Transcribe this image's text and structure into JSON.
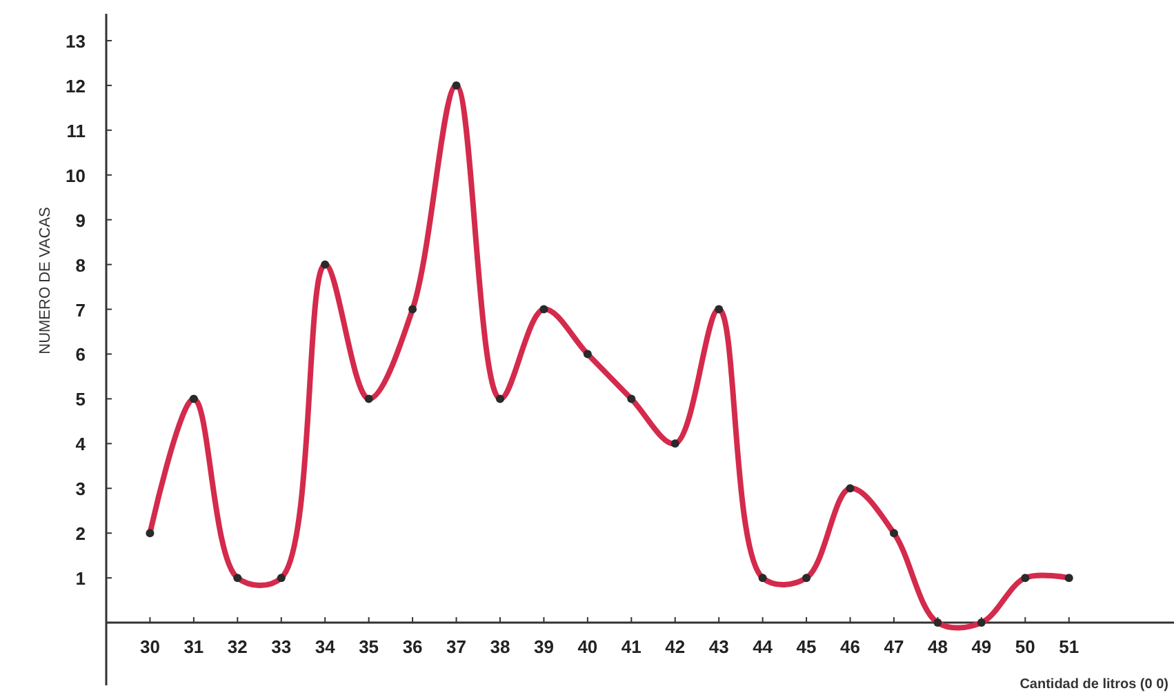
{
  "chart_data": {
    "type": "line",
    "ylabel": "NUMERO DE VACAS",
    "xlabel": "Cantidad de litros (0 0)",
    "x": [
      30,
      31,
      32,
      33,
      34,
      35,
      36,
      37,
      38,
      39,
      40,
      41,
      42,
      43,
      44,
      45,
      46,
      47,
      48,
      49,
      50,
      51
    ],
    "series": [
      {
        "color": "#d42a4c",
        "values": [
          2,
          5,
          1,
          1,
          8,
          5,
          7,
          12,
          5,
          7,
          6,
          5,
          4,
          7,
          1,
          1,
          3,
          2,
          0,
          0,
          1,
          1
        ]
      }
    ],
    "xlim": [
      29,
      53.4
    ],
    "xticks": [
      30,
      31,
      32,
      33,
      34,
      35,
      36,
      37,
      38,
      39,
      40,
      41,
      42,
      43,
      44,
      45,
      46,
      47,
      48,
      49,
      50,
      51
    ],
    "ylim": [
      -1.4,
      13.6
    ],
    "yticks": [
      1,
      2,
      3,
      4,
      5,
      6,
      7,
      8,
      9,
      10,
      11,
      12,
      13
    ],
    "marker": "circle",
    "line_style": "solid"
  }
}
